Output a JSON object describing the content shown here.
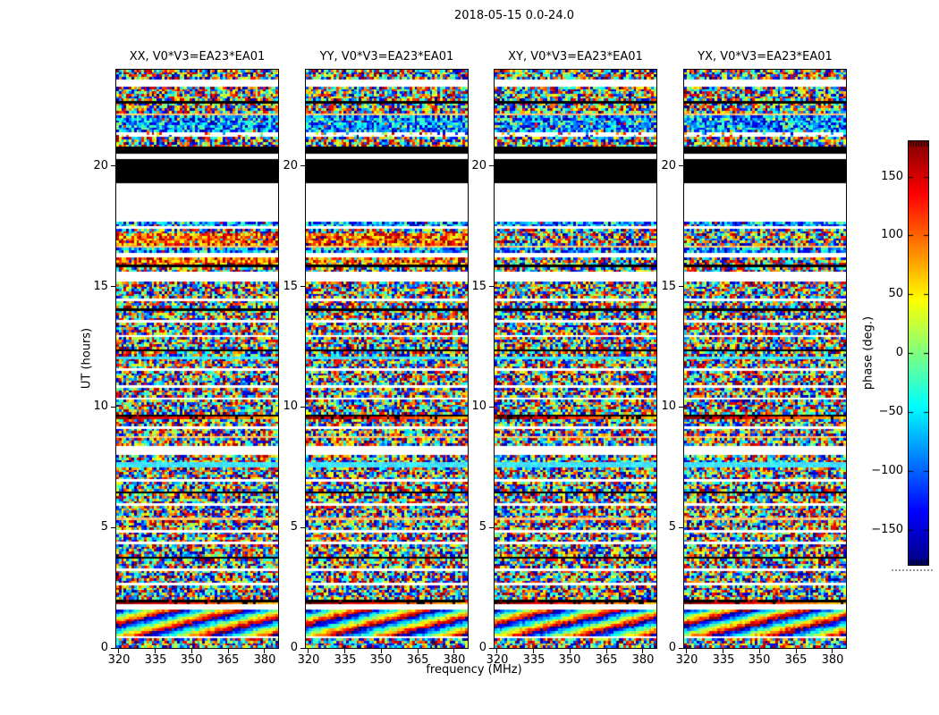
{
  "chart_data": {
    "type": "heatmap",
    "title": "2018-05-15 0.0-24.0",
    "xlabel": "frequency (MHz)",
    "ylabel": "UT (hours)",
    "panels": [
      {
        "title": "XX, V0*V3=EA23*EA01"
      },
      {
        "title": "YY, V0*V3=EA23*EA01"
      },
      {
        "title": "XY, V0*V3=EA23*EA01"
      },
      {
        "title": "YX, V0*V3=EA23*EA01"
      }
    ],
    "x_ticks": [
      320,
      335,
      350,
      365,
      380
    ],
    "x_range": [
      318.9,
      385.6
    ],
    "y_ticks": [
      0,
      5,
      10,
      15,
      20
    ],
    "y_range": [
      0,
      24
    ],
    "colorbar": {
      "label": "phase (deg.)",
      "ticks": [
        150,
        100,
        50,
        0,
        -50,
        -100,
        -150
      ],
      "range": [
        -180,
        180
      ],
      "colormap": "jet"
    },
    "grid": {
      "cols": 64,
      "rows": 240
    },
    "band_types": {
      "n": "random phase noise",
      "c": "cool-biased noise",
      "warm": "warm-biased noise (XX,YY only)",
      "w": "flagged white",
      "ws": "white with sparse specks",
      "k": "flagged black",
      "y": "pale yellow-green row",
      "cyan": "bright cyan row",
      "kred": "black row with dark-red-to-yellow gradient line",
      "diag": "diagonal phase-wrap pattern"
    },
    "bands": [
      [
        0,
        4,
        "n"
      ],
      [
        4,
        7,
        "w"
      ],
      [
        7,
        13,
        "n"
      ],
      [
        13,
        14,
        "k"
      ],
      [
        14,
        18,
        "n"
      ],
      [
        18,
        19,
        "y"
      ],
      [
        19,
        26,
        "c"
      ],
      [
        26,
        28,
        "ws"
      ],
      [
        28,
        32,
        "n"
      ],
      [
        32,
        35,
        "k"
      ],
      [
        35,
        37,
        "w"
      ],
      [
        37,
        47,
        "k"
      ],
      [
        47,
        63,
        "w"
      ],
      [
        63,
        65,
        "c"
      ],
      [
        65,
        66,
        "w"
      ],
      [
        66,
        68,
        "n"
      ],
      [
        68,
        73,
        "warm",
        [
          0,
          1
        ]
      ],
      [
        73,
        74,
        "y"
      ],
      [
        74,
        76,
        "c"
      ],
      [
        76,
        78,
        "w"
      ],
      [
        78,
        81,
        "warm",
        [
          0,
          1
        ]
      ],
      [
        81,
        82,
        "k"
      ],
      [
        82,
        84,
        "n"
      ],
      [
        84,
        88,
        "w"
      ],
      [
        88,
        95,
        "n"
      ],
      [
        95,
        96,
        "w"
      ],
      [
        96,
        99,
        "n"
      ],
      [
        99,
        100,
        "k"
      ],
      [
        100,
        104,
        "n"
      ],
      [
        104,
        105,
        "w"
      ],
      [
        105,
        110,
        "n"
      ],
      [
        110,
        111,
        "w"
      ],
      [
        111,
        116,
        "n"
      ],
      [
        116,
        117,
        "k"
      ],
      [
        117,
        119,
        "n"
      ],
      [
        119,
        120,
        "cyan"
      ],
      [
        120,
        124,
        "n"
      ],
      [
        124,
        125,
        "w"
      ],
      [
        125,
        131,
        "n"
      ],
      [
        131,
        132,
        "w"
      ],
      [
        132,
        136,
        "n"
      ],
      [
        136,
        137,
        "w"
      ],
      [
        137,
        143,
        "n"
      ],
      [
        143,
        145,
        "kred"
      ],
      [
        145,
        148,
        "n"
      ],
      [
        148,
        149,
        "w"
      ],
      [
        149,
        152,
        "n"
      ],
      [
        152,
        153,
        "y"
      ],
      [
        153,
        156,
        "n"
      ],
      [
        156,
        160,
        "w"
      ],
      [
        160,
        163,
        "n"
      ],
      [
        163,
        165,
        "cyan"
      ],
      [
        165,
        170,
        "n"
      ],
      [
        170,
        171,
        "w"
      ],
      [
        171,
        175,
        "n"
      ],
      [
        175,
        176,
        "k"
      ],
      [
        176,
        180,
        "n"
      ],
      [
        180,
        181,
        "w"
      ],
      [
        181,
        186,
        "n"
      ],
      [
        186,
        187,
        "y"
      ],
      [
        187,
        191,
        "n"
      ],
      [
        191,
        192,
        "w"
      ],
      [
        192,
        196,
        "n"
      ],
      [
        196,
        197,
        "w"
      ],
      [
        197,
        202,
        "n"
      ],
      [
        202,
        203,
        "k"
      ],
      [
        203,
        207,
        "n"
      ],
      [
        207,
        208,
        "w"
      ],
      [
        208,
        213,
        "n"
      ],
      [
        213,
        214,
        "w"
      ],
      [
        214,
        220,
        "n"
      ],
      [
        220,
        222,
        "kred"
      ],
      [
        222,
        224,
        "w"
      ],
      [
        224,
        235,
        "diag"
      ],
      [
        235,
        236,
        "w"
      ],
      [
        236,
        240,
        "n"
      ]
    ]
  }
}
